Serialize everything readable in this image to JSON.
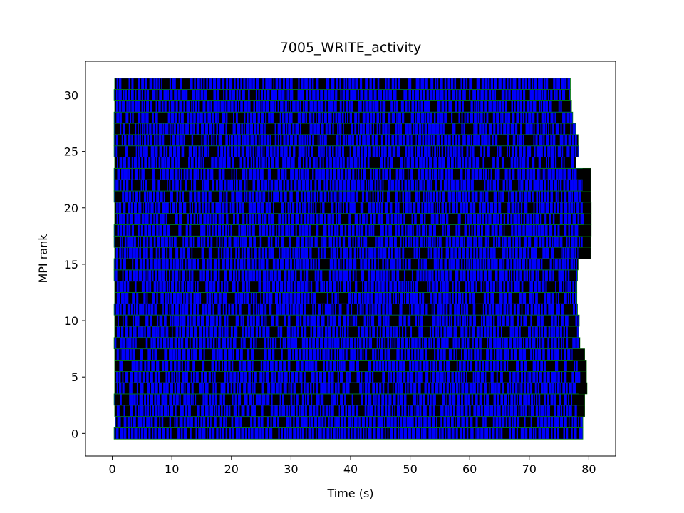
{
  "chart_data": {
    "type": "bar",
    "subtype": "horizontal-timeline",
    "title": "7005_WRITE_activity",
    "xlabel": "Time (s)",
    "ylabel": "MPI rank",
    "xlim": [
      -4.5,
      84.5
    ],
    "ylim": [
      -2.0,
      33.0
    ],
    "xticks": [
      0,
      10,
      20,
      30,
      40,
      50,
      60,
      70,
      80
    ],
    "yticks": [
      0,
      5,
      10,
      15,
      20,
      25,
      30
    ],
    "grid": false,
    "colors": {
      "bar_fill": "#0000ff",
      "bar_edge": "#000000",
      "outline": "#008000"
    },
    "ranks": [
      {
        "rank": 0,
        "start": 0.3,
        "end": 79.0
      },
      {
        "rank": 1,
        "start": 0.5,
        "end": 79.0
      },
      {
        "rank": 2,
        "start": 0.4,
        "end": 79.3
      },
      {
        "rank": 3,
        "start": 0.3,
        "end": 79.3
      },
      {
        "rank": 4,
        "start": 0.4,
        "end": 79.7
      },
      {
        "rank": 5,
        "start": 0.4,
        "end": 79.6
      },
      {
        "rank": 6,
        "start": 0.4,
        "end": 79.6
      },
      {
        "rank": 7,
        "start": 0.4,
        "end": 79.3
      },
      {
        "rank": 8,
        "start": 0.3,
        "end": 78.5
      },
      {
        "rank": 9,
        "start": 0.4,
        "end": 78.3
      },
      {
        "rank": 10,
        "start": 0.4,
        "end": 78.4
      },
      {
        "rank": 11,
        "start": 0.3,
        "end": 78.1
      },
      {
        "rank": 12,
        "start": 0.4,
        "end": 78.0
      },
      {
        "rank": 13,
        "start": 0.4,
        "end": 78.0
      },
      {
        "rank": 14,
        "start": 0.3,
        "end": 78.1
      },
      {
        "rank": 15,
        "start": 0.3,
        "end": 78.2
      },
      {
        "rank": 16,
        "start": 0.4,
        "end": 80.3
      },
      {
        "rank": 17,
        "start": 0.3,
        "end": 80.3
      },
      {
        "rank": 18,
        "start": 0.3,
        "end": 80.4
      },
      {
        "rank": 19,
        "start": 0.4,
        "end": 80.4
      },
      {
        "rank": 20,
        "start": 0.4,
        "end": 80.4
      },
      {
        "rank": 21,
        "start": 0.3,
        "end": 80.3
      },
      {
        "rank": 22,
        "start": 0.3,
        "end": 80.3
      },
      {
        "rank": 23,
        "start": 0.3,
        "end": 80.3
      },
      {
        "rank": 24,
        "start": 0.4,
        "end": 77.8
      },
      {
        "rank": 25,
        "start": 0.3,
        "end": 78.3
      },
      {
        "rank": 26,
        "start": 0.3,
        "end": 78.2
      },
      {
        "rank": 27,
        "start": 0.3,
        "end": 77.8
      },
      {
        "rank": 28,
        "start": 0.3,
        "end": 77.3
      },
      {
        "rank": 29,
        "start": 0.4,
        "end": 77.1
      },
      {
        "rank": 30,
        "start": 0.3,
        "end": 76.9
      },
      {
        "rank": 31,
        "start": 0.4,
        "end": 76.9
      }
    ]
  }
}
